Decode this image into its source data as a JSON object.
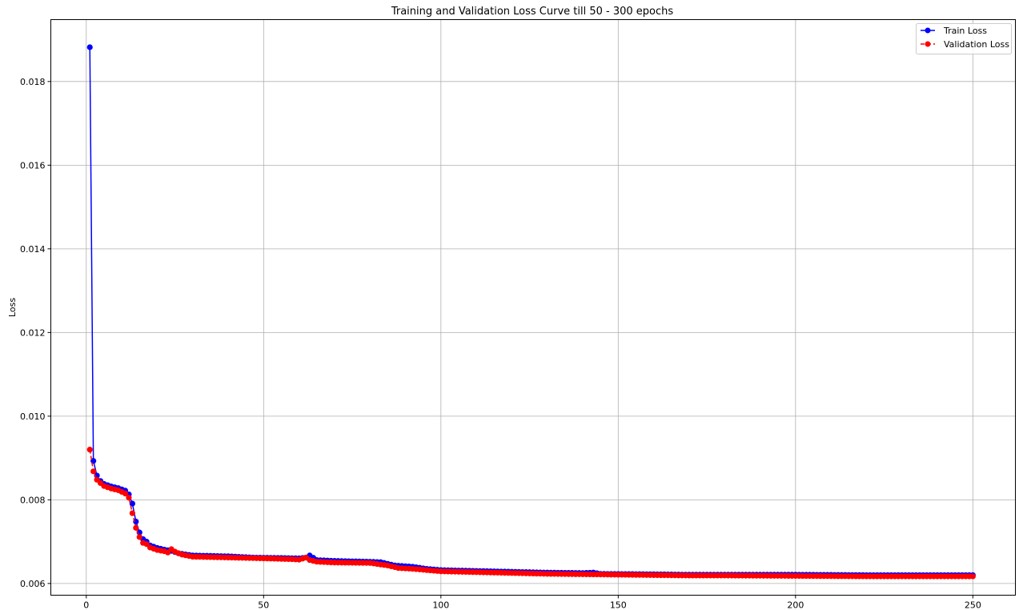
{
  "chart_data": {
    "type": "line",
    "title": "Training and Validation Loss Curve till 50 - 300 epochs",
    "xlabel": "",
    "ylabel": "Loss",
    "xlim": [
      -10,
      262
    ],
    "ylim": [
      0.00572,
      0.01948
    ],
    "xticks": [
      0,
      50,
      100,
      150,
      200,
      250
    ],
    "yticks": [
      0.006,
      0.008,
      0.01,
      0.012,
      0.014,
      0.016,
      0.018
    ],
    "ytick_labels": [
      "0.006",
      "0.008",
      "0.010",
      "0.012",
      "0.014",
      "0.016",
      "0.018"
    ],
    "grid": true,
    "legend_position": "top-right",
    "x_range": [
      1,
      250
    ],
    "series": [
      {
        "name": "Train Loss",
        "color": "#0000ff",
        "line_style": "solid",
        "marker": "circle",
        "anchors": [
          [
            1,
            0.01882
          ],
          [
            2,
            0.00893
          ],
          [
            3,
            0.00858
          ],
          [
            4,
            0.00845
          ],
          [
            5,
            0.00838
          ],
          [
            7,
            0.00832
          ],
          [
            9,
            0.00828
          ],
          [
            11,
            0.00822
          ],
          [
            12,
            0.00813
          ],
          [
            13,
            0.00791
          ],
          [
            14,
            0.00748
          ],
          [
            15,
            0.00722
          ],
          [
            16,
            0.00706
          ],
          [
            17,
            0.007
          ],
          [
            18,
            0.00691
          ],
          [
            20,
            0.00685
          ],
          [
            22,
            0.00681
          ],
          [
            24,
            0.00678
          ],
          [
            26,
            0.00672
          ],
          [
            30,
            0.00667
          ],
          [
            40,
            0.00665
          ],
          [
            47,
            0.00662
          ],
          [
            55,
            0.00661
          ],
          [
            60,
            0.0066
          ],
          [
            62,
            0.00662
          ],
          [
            63,
            0.00667
          ],
          [
            65,
            0.00656
          ],
          [
            70,
            0.00654
          ],
          [
            80,
            0.00652
          ],
          [
            83,
            0.00651
          ],
          [
            87,
            0.00643
          ],
          [
            92,
            0.0064
          ],
          [
            96,
            0.00635
          ],
          [
            100,
            0.00632
          ],
          [
            110,
            0.0063
          ],
          [
            120,
            0.00628
          ],
          [
            130,
            0.00626
          ],
          [
            140,
            0.00625
          ],
          [
            143,
            0.00626
          ],
          [
            145,
            0.00623
          ],
          [
            160,
            0.00622
          ],
          [
            170,
            0.00621
          ],
          [
            180,
            0.00621
          ],
          [
            200,
            0.00621
          ],
          [
            220,
            0.0062
          ],
          [
            250,
            0.0062
          ]
        ]
      },
      {
        "name": "Validation Loss",
        "color": "#ff0000",
        "line_style": "dashed",
        "marker": "circle",
        "anchors": [
          [
            1,
            0.0092
          ],
          [
            2,
            0.00868
          ],
          [
            3,
            0.00848
          ],
          [
            4,
            0.0084
          ],
          [
            5,
            0.00833
          ],
          [
            7,
            0.00827
          ],
          [
            9,
            0.00823
          ],
          [
            11,
            0.00815
          ],
          [
            12,
            0.00805
          ],
          [
            13,
            0.00768
          ],
          [
            14,
            0.00733
          ],
          [
            15,
            0.00711
          ],
          [
            16,
            0.00697
          ],
          [
            17,
            0.00694
          ],
          [
            18,
            0.00686
          ],
          [
            20,
            0.0068
          ],
          [
            22,
            0.00677
          ],
          [
            23,
            0.00674
          ],
          [
            24,
            0.00682
          ],
          [
            25,
            0.00676
          ],
          [
            27,
            0.00669
          ],
          [
            30,
            0.00664
          ],
          [
            40,
            0.00662
          ],
          [
            50,
            0.0066
          ],
          [
            58,
            0.00658
          ],
          [
            60,
            0.00657
          ],
          [
            62,
            0.00662
          ],
          [
            63,
            0.00656
          ],
          [
            65,
            0.00652
          ],
          [
            70,
            0.0065
          ],
          [
            80,
            0.00649
          ],
          [
            85,
            0.00643
          ],
          [
            88,
            0.00637
          ],
          [
            92,
            0.00635
          ],
          [
            96,
            0.00632
          ],
          [
            100,
            0.00629
          ],
          [
            110,
            0.00627
          ],
          [
            120,
            0.00625
          ],
          [
            130,
            0.00623
          ],
          [
            140,
            0.00622
          ],
          [
            150,
            0.00621
          ],
          [
            160,
            0.0062
          ],
          [
            170,
            0.00619
          ],
          [
            180,
            0.00619
          ],
          [
            200,
            0.00618
          ],
          [
            220,
            0.00617
          ],
          [
            250,
            0.00617
          ]
        ]
      }
    ]
  }
}
